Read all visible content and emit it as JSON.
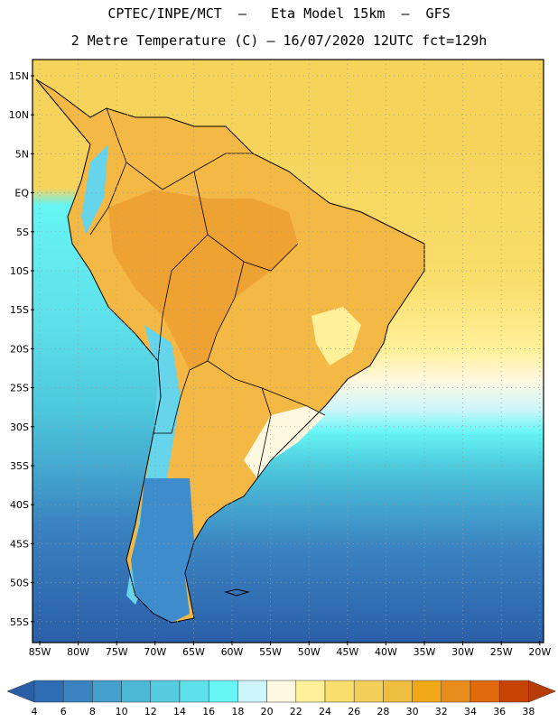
{
  "header": {
    "line1": "CPTEC/INPE/MCT  –   Eta Model 15km  –  GFS",
    "line2": "2 Metre Temperature (C) – 16/07/2020 12UTC fct=129h"
  },
  "map": {
    "lat_labels": [
      "15N",
      "10N",
      "5N",
      "EQ",
      "5S",
      "10S",
      "15S",
      "20S",
      "25S",
      "30S",
      "35S",
      "40S",
      "45S",
      "50S",
      "55S"
    ],
    "lon_labels": [
      "85W",
      "80W",
      "75W",
      "70W",
      "65W",
      "60W",
      "55W",
      "50W",
      "45W",
      "40W",
      "35W",
      "30W",
      "25W",
      "20W"
    ]
  },
  "colorbar": {
    "labels": [
      "4",
      "6",
      "8",
      "10",
      "12",
      "14",
      "16",
      "18",
      "20",
      "22",
      "24",
      "26",
      "28",
      "30",
      "32",
      "34",
      "36",
      "38"
    ],
    "colors": [
      "#2e6db4",
      "#3a82c0",
      "#44a0cc",
      "#4cb8d8",
      "#55cce0",
      "#5ee0ea",
      "#66f4f4",
      "#cef6fa",
      "#fff8e0",
      "#fff09a",
      "#f8de6a",
      "#f4ce5a",
      "#f0be3e",
      "#f0a818",
      "#e88c1c",
      "#e06a0c",
      "#c84406"
    ],
    "low_color": "#2a5fa8",
    "high_color": "#b83c08"
  }
}
